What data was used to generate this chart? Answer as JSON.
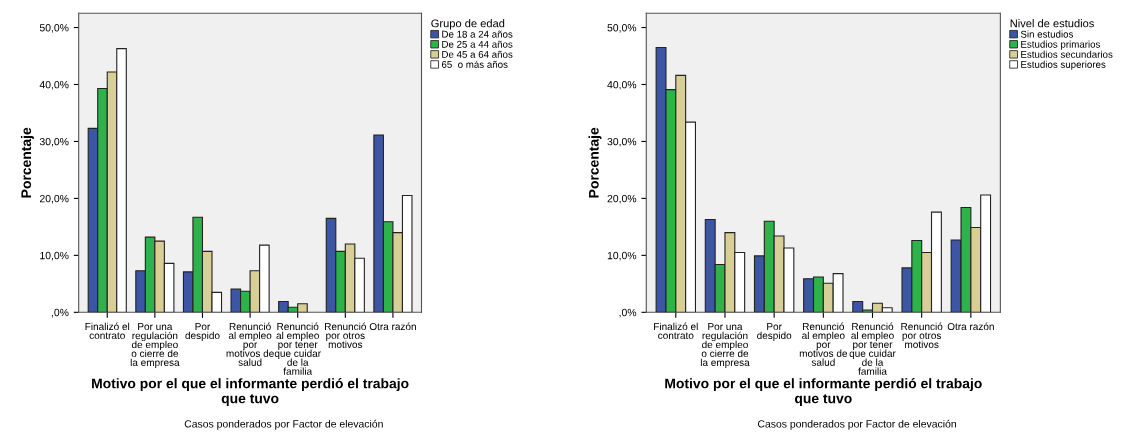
{
  "chart_data": [
    {
      "type": "bar",
      "xlabel": "Motivo por el que el informante perdió el trabajo que tuvo",
      "ylabel": "Porcentaje",
      "legend_title": "Grupo de edad",
      "annotations": [
        "Casos ponderados por Factor de elevación"
      ],
      "categories": [
        "Finalizó el\ncontrato",
        "Por una\nregulación\nde empleo\no cierre de\nla empresa",
        "Por\ndespido",
        "Renunció\nal empleo\npor\nmotivos de\nsalud",
        "Renunció\nal empleo\npor tener\nque cuidar\nde la\nfamilia",
        "Renunció\npor otros\nmotivos",
        "Otra razón"
      ],
      "series": [
        {
          "name": "De 18 a 24 años",
          "color": "#3c55a5",
          "values": [
            32.3,
            7.3,
            7.1,
            4.1,
            1.9,
            16.5,
            31.1
          ]
        },
        {
          "name": "De 25 a 44 años",
          "color": "#2db34a",
          "values": [
            39.3,
            13.2,
            16.7,
            3.7,
            0.9,
            10.7,
            15.9
          ]
        },
        {
          "name": "De 45 a 64 años",
          "color": "#d8cf97",
          "values": [
            42.2,
            12.5,
            10.7,
            7.3,
            1.5,
            12.0,
            14.0
          ]
        },
        {
          "name": "65  o más años",
          "color": "#ffffff",
          "values": [
            46.3,
            8.6,
            3.5,
            11.8,
            null,
            9.5,
            20.5
          ]
        }
      ],
      "ylim": [
        0,
        52.5
      ],
      "yticks": [
        {
          "value": 0,
          "label": ",0%"
        },
        {
          "value": 10,
          "label": "10,0%"
        },
        {
          "value": 20,
          "label": "20,0%"
        },
        {
          "value": 30,
          "label": "30,0%"
        },
        {
          "value": 40,
          "label": "40,0%"
        },
        {
          "value": 50,
          "label": "50,0%"
        }
      ],
      "grid": false,
      "legend": "top right"
    },
    {
      "type": "bar",
      "xlabel": "Motivo por el que el informante perdió el trabajo que tuvo",
      "ylabel": "Porcentaje",
      "legend_title": "Nivel de estudios",
      "annotations": [
        "Casos ponderados por Factor de elevación"
      ],
      "categories": [
        "Finalizó el\ncontrato",
        "Por una\nregulación\nde empleo\no cierre de\nla empresa",
        "Por\ndespido",
        "Renunció\nal empleo\npor\nmotivos de\nsalud",
        "Renunció\nal empleo\npor tener\nque cuidar\nde la\nfamilia",
        "Renunció\npor otros\nmotivos",
        "Otra razón"
      ],
      "series": [
        {
          "name": "Sin estudios",
          "color": "#3c55a5",
          "values": [
            46.5,
            16.3,
            9.9,
            5.9,
            1.9,
            7.8,
            12.7
          ]
        },
        {
          "name": "Estudios primarios",
          "color": "#2db34a",
          "values": [
            39.1,
            8.4,
            16.0,
            6.2,
            0.4,
            12.6,
            18.4
          ]
        },
        {
          "name": "Estudios secundarios",
          "color": "#d8cf97",
          "values": [
            41.6,
            14.0,
            13.4,
            5.1,
            1.6,
            10.5,
            14.9
          ]
        },
        {
          "name": "Estudios superiores",
          "color": "#ffffff",
          "values": [
            33.4,
            10.5,
            11.3,
            6.8,
            0.8,
            17.6,
            20.6
          ]
        }
      ],
      "ylim": [
        0,
        52.5
      ],
      "yticks": [
        {
          "value": 0,
          "label": ",0%"
        },
        {
          "value": 10,
          "label": "10,0%"
        },
        {
          "value": 20,
          "label": "20,0%"
        },
        {
          "value": 30,
          "label": "30,0%"
        },
        {
          "value": 40,
          "label": "40,0%"
        },
        {
          "value": 50,
          "label": "50,0%"
        }
      ],
      "grid": false,
      "legend": "top right"
    }
  ]
}
